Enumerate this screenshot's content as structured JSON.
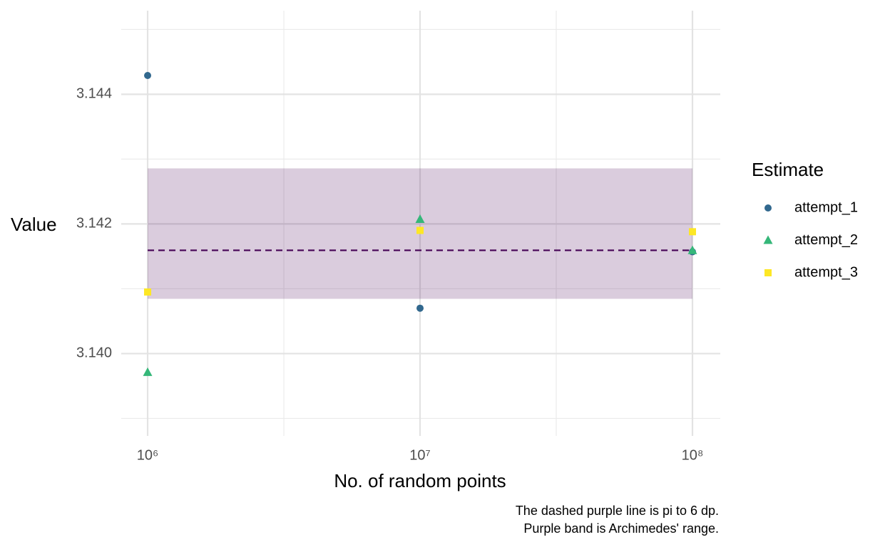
{
  "chart_data": {
    "type": "scatter",
    "x_label": "No. of random points",
    "y_label": "Value",
    "legend_title": "Estimate",
    "legend_position": "right",
    "caption": [
      "The dashed purple line is pi to 6 dp.",
      "Purple band is Archimedes' range."
    ],
    "x": [
      1000000,
      10000000,
      100000000
    ],
    "series": [
      {
        "name": "attempt_1",
        "color": "#31688e",
        "shape": "circle",
        "values": [
          3.14429,
          3.1407,
          3.14157
        ]
      },
      {
        "name": "attempt_2",
        "color": "#35b779",
        "shape": "triangle",
        "values": [
          3.13971,
          3.14207,
          3.14159
        ]
      },
      {
        "name": "attempt_3",
        "color": "#fde725",
        "shape": "square",
        "values": [
          3.14095,
          3.1419,
          3.14188
        ]
      }
    ],
    "reference_line": {
      "value": 3.141593,
      "color": "#440154",
      "dashed": true
    },
    "band": {
      "xmin": 1000000,
      "xmax": 100000000,
      "ymin": 3.140845,
      "ymax": 3.142857,
      "color": "#440154",
      "opacity": 0.2
    },
    "x_log": true,
    "xlim": [
      800000,
      126500000
    ],
    "ylim": [
      3.13873,
      3.14529
    ],
    "xticks": [
      {
        "value": 1000000,
        "label": "10⁶"
      },
      {
        "value": 10000000,
        "label": "10⁷"
      },
      {
        "value": 100000000,
        "label": "10⁸"
      }
    ],
    "yticks": [
      {
        "value": 3.14,
        "label": "3.140"
      },
      3.142,
      3.144
    ],
    "x_minor_grid": [
      3162278,
      31622777
    ],
    "y_minor_grid": [
      3.139,
      3.141,
      3.143,
      3.145
    ],
    "grid": true
  }
}
